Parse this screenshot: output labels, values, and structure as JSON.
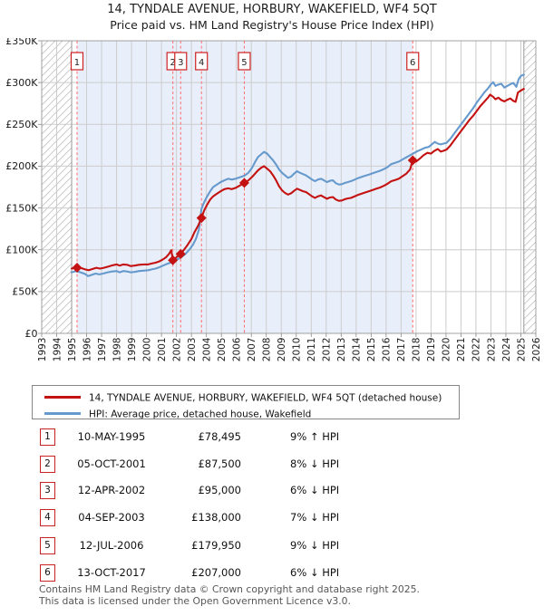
{
  "title": "14, TYNDALE AVENUE, HORBURY, WAKEFIELD, WF4 5QT",
  "subtitle": "Price paid vs. HM Land Registry's House Price Index (HPI)",
  "chart_data": {
    "type": "line",
    "x_axis": {
      "min": 1993,
      "max": 2026,
      "step": 1
    },
    "y_axis": {
      "max": 350,
      "ticks": [
        {
          "v": 0,
          "label": "£0"
        },
        {
          "v": 50,
          "label": "£50K"
        },
        {
          "v": 100,
          "label": "£100K"
        },
        {
          "v": 150,
          "label": "£150K"
        },
        {
          "v": 200,
          "label": "£200K"
        },
        {
          "v": 250,
          "label": "£250K"
        },
        {
          "v": 300,
          "label": "£300K"
        },
        {
          "v": 350,
          "label": "£350K"
        }
      ]
    },
    "hpi_data_start_year": 1995.0,
    "data_end_year": 2025.2,
    "ownership_band": {
      "from": 1995.36,
      "to": 2017.78
    },
    "colors": {
      "property": "#c41111",
      "hpi": "#6699cc",
      "sale_line": "#ff6b6b",
      "badge_border": "#cc2222",
      "band": "#e9effa",
      "grid": "#cccccc",
      "plot_border": "#a0a0a0",
      "boundary_line": "#999999"
    },
    "series": [
      {
        "name": "14, TYNDALE AVENUE, HORBURY, WAKEFIELD, WF4 5QT (detached house)",
        "color": "#c41111",
        "points": [
          [
            1995.0,
            77.5
          ],
          [
            1995.36,
            78.495
          ],
          [
            1995.65,
            78
          ],
          [
            1995.9,
            76.5
          ],
          [
            1996.15,
            75.5
          ],
          [
            1996.4,
            77
          ],
          [
            1996.65,
            78.5
          ],
          [
            1996.9,
            77.5
          ],
          [
            1997.15,
            78.5
          ],
          [
            1997.45,
            80
          ],
          [
            1997.75,
            81.5
          ],
          [
            1998.0,
            82.5
          ],
          [
            1998.2,
            81
          ],
          [
            1998.45,
            82.5
          ],
          [
            1998.7,
            82
          ],
          [
            1998.95,
            80.5
          ],
          [
            1999.2,
            81
          ],
          [
            1999.5,
            82
          ],
          [
            1999.8,
            82.5
          ],
          [
            2000.1,
            82.5
          ],
          [
            2000.35,
            83.5
          ],
          [
            2000.6,
            84.5
          ],
          [
            2000.85,
            86
          ],
          [
            2001.1,
            88.5
          ],
          [
            2001.3,
            91
          ],
          [
            2001.5,
            95
          ],
          [
            2001.65,
            99.5
          ],
          [
            2001.76,
            87.5
          ],
          [
            2002.0,
            91
          ],
          [
            2002.28,
            95
          ],
          [
            2002.5,
            100
          ],
          [
            2002.75,
            106
          ],
          [
            2003.0,
            113
          ],
          [
            2003.2,
            121
          ],
          [
            2003.45,
            129
          ],
          [
            2003.67,
            138
          ],
          [
            2003.85,
            147
          ],
          [
            2004.05,
            154
          ],
          [
            2004.25,
            160
          ],
          [
            2004.45,
            164
          ],
          [
            2004.7,
            167
          ],
          [
            2004.95,
            170
          ],
          [
            2005.2,
            172.5
          ],
          [
            2005.45,
            173.5
          ],
          [
            2005.7,
            172.5
          ],
          [
            2005.95,
            174
          ],
          [
            2006.2,
            176.5
          ],
          [
            2006.53,
            179.95
          ],
          [
            2006.8,
            183
          ],
          [
            2007.05,
            187
          ],
          [
            2007.25,
            191
          ],
          [
            2007.45,
            195
          ],
          [
            2007.65,
            198
          ],
          [
            2007.85,
            200
          ],
          [
            2008.05,
            197
          ],
          [
            2008.25,
            194
          ],
          [
            2008.45,
            189
          ],
          [
            2008.65,
            183
          ],
          [
            2008.85,
            176
          ],
          [
            2009.05,
            171
          ],
          [
            2009.25,
            168
          ],
          [
            2009.45,
            166
          ],
          [
            2009.65,
            167.5
          ],
          [
            2009.85,
            170.5
          ],
          [
            2010.05,
            173
          ],
          [
            2010.25,
            171.5
          ],
          [
            2010.45,
            170
          ],
          [
            2010.65,
            169
          ],
          [
            2010.85,
            166.5
          ],
          [
            2011.05,
            164
          ],
          [
            2011.25,
            162
          ],
          [
            2011.45,
            164
          ],
          [
            2011.65,
            165
          ],
          [
            2011.85,
            163
          ],
          [
            2012.05,
            161
          ],
          [
            2012.25,
            162.5
          ],
          [
            2012.45,
            163
          ],
          [
            2012.65,
            160
          ],
          [
            2012.85,
            158.5
          ],
          [
            2013.05,
            159
          ],
          [
            2013.25,
            160.5
          ],
          [
            2013.45,
            161.5
          ],
          [
            2013.65,
            162
          ],
          [
            2013.85,
            163.5
          ],
          [
            2014.1,
            165.5
          ],
          [
            2014.35,
            167
          ],
          [
            2014.6,
            168.5
          ],
          [
            2014.85,
            170
          ],
          [
            2015.1,
            171.5
          ],
          [
            2015.35,
            173
          ],
          [
            2015.6,
            174.5
          ],
          [
            2015.85,
            176.5
          ],
          [
            2016.1,
            179
          ],
          [
            2016.35,
            182
          ],
          [
            2016.6,
            183.5
          ],
          [
            2016.85,
            185
          ],
          [
            2017.1,
            188
          ],
          [
            2017.35,
            191
          ],
          [
            2017.6,
            196
          ],
          [
            2017.78,
            207
          ],
          [
            2018.0,
            205.5
          ],
          [
            2018.25,
            209
          ],
          [
            2018.5,
            213
          ],
          [
            2018.75,
            216
          ],
          [
            2019.0,
            215
          ],
          [
            2019.2,
            218
          ],
          [
            2019.45,
            220.5
          ],
          [
            2019.65,
            217.5
          ],
          [
            2019.85,
            218.5
          ],
          [
            2020.05,
            220
          ],
          [
            2020.3,
            225
          ],
          [
            2020.55,
            231
          ],
          [
            2020.8,
            237
          ],
          [
            2021.05,
            243
          ],
          [
            2021.3,
            249
          ],
          [
            2021.55,
            255
          ],
          [
            2021.8,
            260
          ],
          [
            2022.05,
            266
          ],
          [
            2022.3,
            272
          ],
          [
            2022.55,
            277
          ],
          [
            2022.8,
            282
          ],
          [
            2022.95,
            285.5
          ],
          [
            2023.15,
            283
          ],
          [
            2023.3,
            280
          ],
          [
            2023.5,
            282
          ],
          [
            2023.7,
            279
          ],
          [
            2023.9,
            277.5
          ],
          [
            2024.1,
            279.5
          ],
          [
            2024.3,
            281
          ],
          [
            2024.5,
            278
          ],
          [
            2024.65,
            277
          ],
          [
            2024.8,
            288
          ],
          [
            2025.0,
            290.5
          ],
          [
            2025.2,
            292.5
          ]
        ]
      },
      {
        "name": "HPI: Average price, detached house, Wakefield",
        "color": "#6699cc",
        "points": [
          [
            1995.0,
            73
          ],
          [
            1995.3,
            74.5
          ],
          [
            1995.6,
            73
          ],
          [
            1995.9,
            71
          ],
          [
            1996.1,
            68.5
          ],
          [
            1996.35,
            70
          ],
          [
            1996.6,
            71.5
          ],
          [
            1996.85,
            70.5
          ],
          [
            1997.1,
            71.5
          ],
          [
            1997.4,
            73
          ],
          [
            1997.7,
            74
          ],
          [
            1998.0,
            74.5
          ],
          [
            1998.2,
            73
          ],
          [
            1998.45,
            74.5
          ],
          [
            1998.7,
            74
          ],
          [
            1998.95,
            73
          ],
          [
            1999.2,
            73.5
          ],
          [
            1999.5,
            74.5
          ],
          [
            1999.8,
            75
          ],
          [
            2000.1,
            75.5
          ],
          [
            2000.35,
            76.5
          ],
          [
            2000.6,
            77.5
          ],
          [
            2000.85,
            79
          ],
          [
            2001.1,
            81
          ],
          [
            2001.35,
            83
          ],
          [
            2001.6,
            84.5
          ],
          [
            2001.85,
            86.5
          ],
          [
            2002.1,
            89
          ],
          [
            2002.35,
            91.5
          ],
          [
            2002.6,
            95
          ],
          [
            2002.85,
            100
          ],
          [
            2003.1,
            106
          ],
          [
            2003.3,
            113
          ],
          [
            2003.5,
            124
          ],
          [
            2003.67,
            149
          ],
          [
            2003.85,
            157
          ],
          [
            2004.05,
            164
          ],
          [
            2004.25,
            170
          ],
          [
            2004.45,
            175
          ],
          [
            2004.7,
            178
          ],
          [
            2004.95,
            181
          ],
          [
            2005.2,
            183
          ],
          [
            2005.45,
            185
          ],
          [
            2005.7,
            184
          ],
          [
            2005.95,
            185
          ],
          [
            2006.2,
            186.5
          ],
          [
            2006.53,
            188.5
          ],
          [
            2006.8,
            192
          ],
          [
            2007.05,
            198
          ],
          [
            2007.25,
            205
          ],
          [
            2007.45,
            211
          ],
          [
            2007.65,
            214
          ],
          [
            2007.85,
            217
          ],
          [
            2008.05,
            215
          ],
          [
            2008.25,
            211
          ],
          [
            2008.45,
            207
          ],
          [
            2008.65,
            202
          ],
          [
            2008.85,
            196
          ],
          [
            2009.05,
            192
          ],
          [
            2009.25,
            189
          ],
          [
            2009.45,
            186
          ],
          [
            2009.65,
            187.5
          ],
          [
            2009.85,
            191
          ],
          [
            2010.05,
            194
          ],
          [
            2010.25,
            192
          ],
          [
            2010.45,
            190.5
          ],
          [
            2010.65,
            189
          ],
          [
            2010.85,
            186.5
          ],
          [
            2011.05,
            184
          ],
          [
            2011.25,
            182
          ],
          [
            2011.45,
            184
          ],
          [
            2011.65,
            185
          ],
          [
            2011.85,
            183
          ],
          [
            2012.05,
            181
          ],
          [
            2012.25,
            182.5
          ],
          [
            2012.45,
            183
          ],
          [
            2012.65,
            179.5
          ],
          [
            2012.85,
            178
          ],
          [
            2013.05,
            178.5
          ],
          [
            2013.25,
            180
          ],
          [
            2013.45,
            181
          ],
          [
            2013.65,
            182
          ],
          [
            2013.85,
            183.5
          ],
          [
            2014.1,
            185.5
          ],
          [
            2014.35,
            187
          ],
          [
            2014.6,
            188.5
          ],
          [
            2014.85,
            190
          ],
          [
            2015.1,
            191.5
          ],
          [
            2015.35,
            193
          ],
          [
            2015.6,
            194.5
          ],
          [
            2015.85,
            196.5
          ],
          [
            2016.1,
            199
          ],
          [
            2016.35,
            202.5
          ],
          [
            2016.6,
            204
          ],
          [
            2016.85,
            205.5
          ],
          [
            2017.1,
            208
          ],
          [
            2017.35,
            210.5
          ],
          [
            2017.6,
            213
          ],
          [
            2017.85,
            215.5
          ],
          [
            2018.1,
            218
          ],
          [
            2018.35,
            220
          ],
          [
            2018.6,
            222
          ],
          [
            2018.85,
            223
          ],
          [
            2019.05,
            226
          ],
          [
            2019.25,
            229
          ],
          [
            2019.45,
            227
          ],
          [
            2019.65,
            226
          ],
          [
            2019.85,
            227
          ],
          [
            2020.05,
            228
          ],
          [
            2020.3,
            233
          ],
          [
            2020.55,
            239
          ],
          [
            2020.8,
            245
          ],
          [
            2021.05,
            251
          ],
          [
            2021.3,
            257
          ],
          [
            2021.55,
            263
          ],
          [
            2021.8,
            269
          ],
          [
            2022.05,
            276
          ],
          [
            2022.3,
            282
          ],
          [
            2022.55,
            288
          ],
          [
            2022.8,
            293
          ],
          [
            2023.0,
            298
          ],
          [
            2023.15,
            300.5
          ],
          [
            2023.3,
            296
          ],
          [
            2023.5,
            297.5
          ],
          [
            2023.7,
            298.5
          ],
          [
            2023.9,
            294
          ],
          [
            2024.1,
            296
          ],
          [
            2024.3,
            298
          ],
          [
            2024.5,
            299.5
          ],
          [
            2024.7,
            295
          ],
          [
            2024.85,
            304
          ],
          [
            2025.0,
            308
          ],
          [
            2025.2,
            309.5
          ]
        ]
      }
    ],
    "sales": [
      {
        "num": "1",
        "year": 1995.36,
        "value": 78.495
      },
      {
        "num": "2",
        "year": 2001.76,
        "value": 87.5
      },
      {
        "num": "3",
        "year": 2002.28,
        "value": 95
      },
      {
        "num": "4",
        "year": 2003.67,
        "value": 138
      },
      {
        "num": "5",
        "year": 2006.53,
        "value": 179.95
      },
      {
        "num": "6",
        "year": 2017.78,
        "value": 207
      }
    ]
  },
  "legend": {
    "items": [
      {
        "label": "14, TYNDALE AVENUE, HORBURY, WAKEFIELD, WF4 5QT (detached house)",
        "color": "#c41111"
      },
      {
        "label": "HPI: Average price, detached house, Wakefield",
        "color": "#6699cc"
      }
    ]
  },
  "table": {
    "rows": [
      {
        "num": "1",
        "date": "10-MAY-1995",
        "price": "£78,495",
        "delta": "9% ↑ HPI"
      },
      {
        "num": "2",
        "date": "05-OCT-2001",
        "price": "£87,500",
        "delta": "8% ↓ HPI"
      },
      {
        "num": "3",
        "date": "12-APR-2002",
        "price": "£95,000",
        "delta": "6% ↓ HPI"
      },
      {
        "num": "4",
        "date": "04-SEP-2003",
        "price": "£138,000",
        "delta": "7% ↓ HPI"
      },
      {
        "num": "5",
        "date": "12-JUL-2006",
        "price": "£179,950",
        "delta": "9% ↓ HPI"
      },
      {
        "num": "6",
        "date": "13-OCT-2017",
        "price": "£207,000",
        "delta": "6% ↓ HPI"
      }
    ]
  },
  "footer": {
    "line1": "Contains HM Land Registry data © Crown copyright and database right 2025.",
    "line2": "This data is licensed under the Open Government Licence v3.0."
  }
}
